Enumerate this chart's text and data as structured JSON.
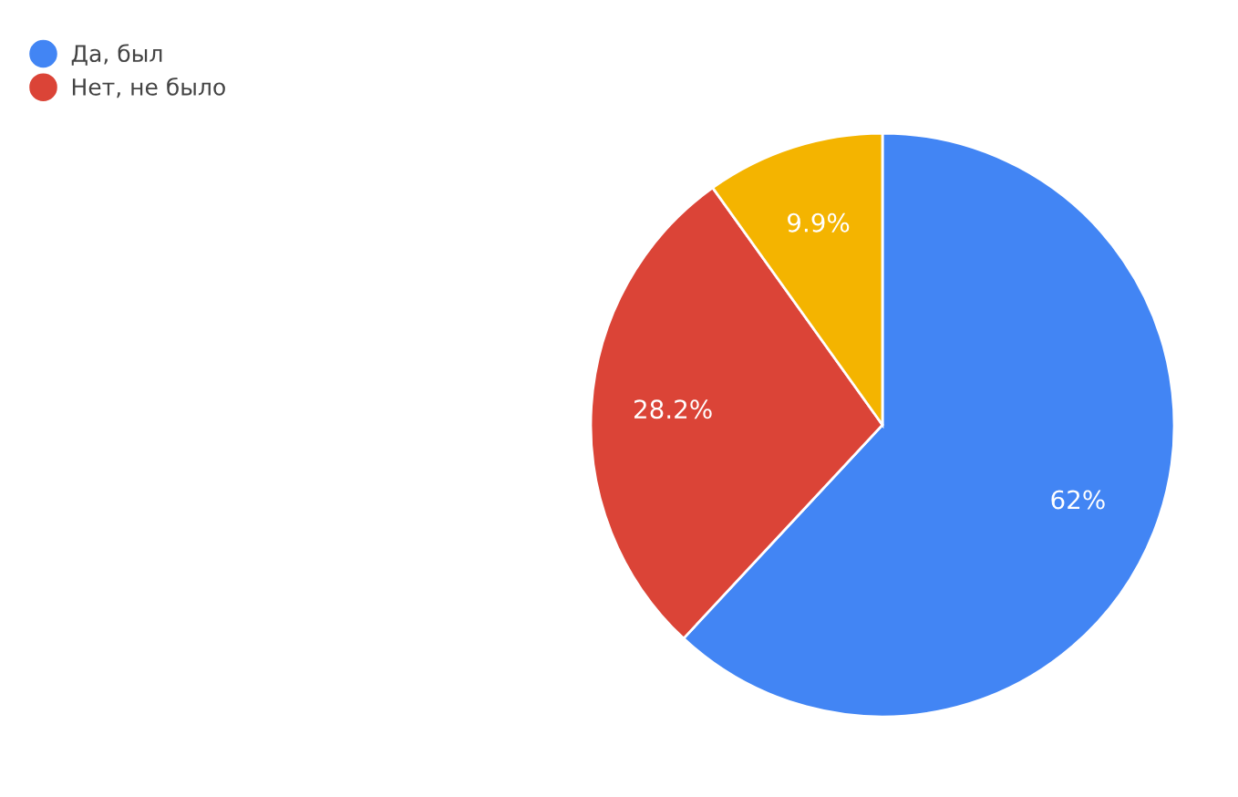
{
  "chart_data": {
    "type": "pie",
    "categories": [
      "Да, был",
      "Нет, не было",
      null
    ],
    "values": [
      62,
      28.2,
      9.9
    ],
    "colors": [
      "#4285f4",
      "#db4437",
      "#f4b400"
    ],
    "value_labels": [
      "62%",
      "28.2%",
      "9.9%"
    ],
    "legend": "top left"
  }
}
